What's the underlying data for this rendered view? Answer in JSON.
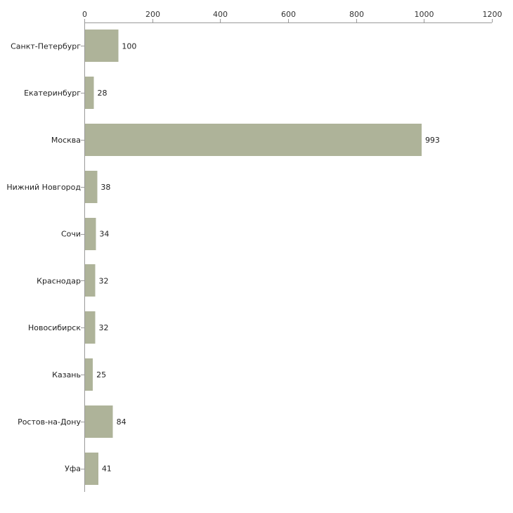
{
  "chart_data": {
    "type": "bar",
    "orientation": "horizontal",
    "title": "",
    "xlabel": "",
    "ylabel": "",
    "xlim": [
      0,
      1200
    ],
    "x_ticks": [
      0,
      200,
      400,
      600,
      800,
      1000,
      1200
    ],
    "x_tick_labels": [
      "0",
      "200",
      "400",
      "600",
      "800",
      "1000",
      "1200"
    ],
    "x_axis_position": "top",
    "grid": false,
    "categories": [
      "Санкт-Петербург",
      "Екатеринбург",
      "Москва",
      "Нижний Новгород",
      "Сочи",
      "Краснодар",
      "Новосибирск",
      "Казань",
      "Ростов-на-Дону",
      "Уфа"
    ],
    "values": [
      100,
      28,
      993,
      38,
      34,
      32,
      32,
      25,
      84,
      41
    ],
    "value_labels": [
      "100",
      "28",
      "993",
      "38",
      "34",
      "32",
      "32",
      "25",
      "84",
      "41"
    ],
    "bar_color": "#aeb399"
  }
}
